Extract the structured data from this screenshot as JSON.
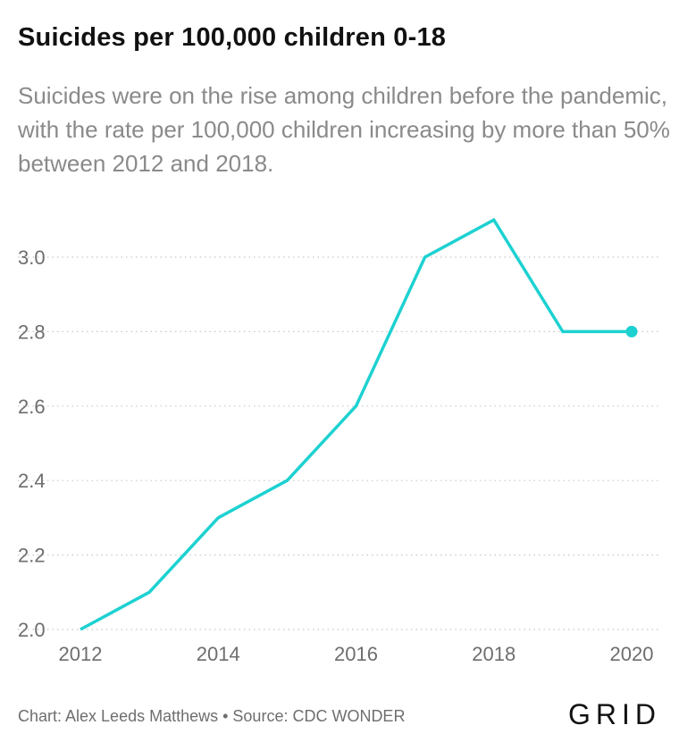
{
  "header": {
    "title": "Suicides per 100,000 children 0-18",
    "subtitle": "Suicides were on the rise among children before the pandemic, with the rate per 100,000 children increasing by more than 50% between 2012 and 2018."
  },
  "footer": {
    "credit": "Chart: Alex Leeds Matthews • Source: CDC WONDER",
    "brand": "GRID"
  },
  "chart_data": {
    "type": "line",
    "title": "Suicides per 100,000 children 0-18",
    "x": [
      2012,
      2013,
      2014,
      2015,
      2016,
      2017,
      2018,
      2019,
      2020
    ],
    "series": [
      {
        "values": [
          2.0,
          2.1,
          2.3,
          2.4,
          2.6,
          3.0,
          3.1,
          2.8,
          2.8
        ],
        "color": "#1dd1d1"
      }
    ],
    "xlim": [
      2012,
      2020
    ],
    "ylim": [
      2.0,
      3.0
    ],
    "xticks": [
      "2012",
      "2014",
      "2016",
      "2018",
      "2020"
    ],
    "yticks": [
      "2.0",
      "2.2",
      "2.4",
      "2.6",
      "2.8",
      "3.0"
    ],
    "grid": "horizontal-dotted",
    "end_marker": true
  }
}
